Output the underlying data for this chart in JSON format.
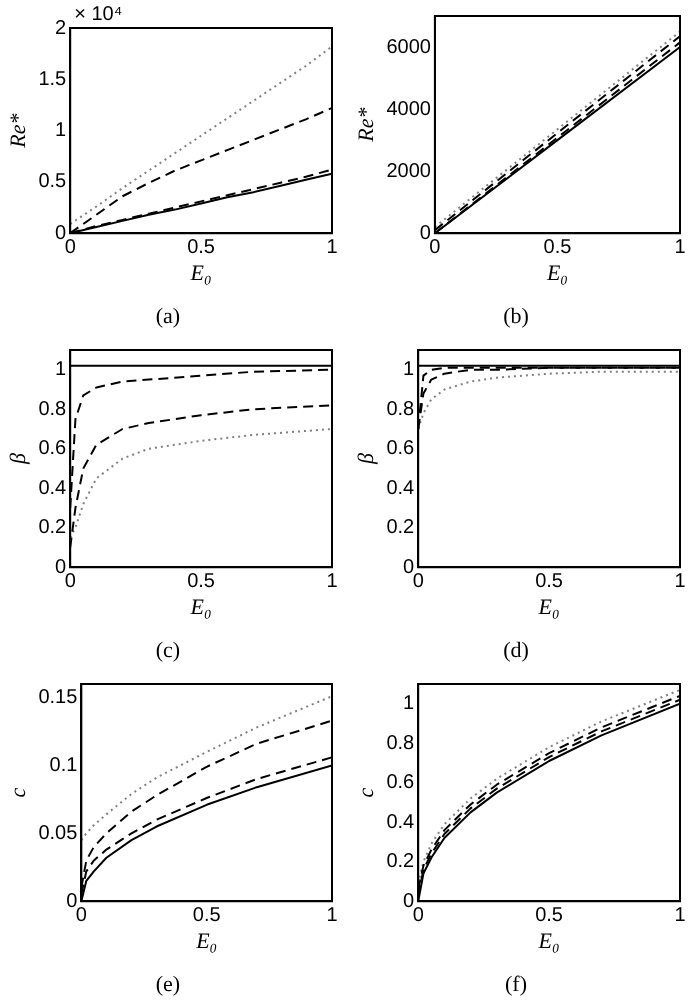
{
  "chart_data": [
    {
      "type": "line",
      "title": "(a)",
      "xlabel": "E₀",
      "ylabel": "Re*",
      "annotations": [
        "× 10⁴"
      ],
      "xlim": [
        0,
        1
      ],
      "xticks": [
        0,
        0.5,
        1
      ],
      "ylim": [
        0,
        2
      ],
      "yticks": [
        0,
        0.5,
        1,
        1.5,
        2
      ],
      "grid": false,
      "legend": false,
      "x": [
        0,
        0.1,
        0.2,
        0.3,
        0.4,
        0.5,
        0.6,
        0.7,
        0.8,
        0.9,
        1
      ],
      "series": [
        {
          "color": "#000000",
          "line_style": "solid",
          "values": [
            0,
            0.06,
            0.12,
            0.18,
            0.23,
            0.29,
            0.35,
            0.4,
            0.46,
            0.52,
            0.58
          ]
        },
        {
          "color": "#000000",
          "line_style": "dashed",
          "values": [
            0,
            0.07,
            0.13,
            0.19,
            0.25,
            0.31,
            0.37,
            0.43,
            0.49,
            0.55,
            0.62
          ]
        },
        {
          "color": "#000000",
          "line_style": "dashed",
          "values": [
            0,
            0.18,
            0.36,
            0.49,
            0.61,
            0.71,
            0.81,
            0.91,
            1.01,
            1.11,
            1.22
          ]
        },
        {
          "color": "#808080",
          "line_style": "dotted",
          "values": [
            0.09,
            0.26,
            0.44,
            0.61,
            0.78,
            0.95,
            1.12,
            1.29,
            1.46,
            1.63,
            1.82
          ]
        }
      ]
    },
    {
      "type": "line",
      "title": "(b)",
      "xlabel": "E₀",
      "ylabel": "Re*",
      "xlim": [
        0,
        1
      ],
      "xticks": [
        0,
        0.5,
        1
      ],
      "ylim": [
        0,
        7000
      ],
      "yticks": [
        0,
        2000,
        4000,
        6000
      ],
      "grid": false,
      "legend": false,
      "x": [
        0,
        0.5,
        1
      ],
      "series": [
        {
          "color": "#000000",
          "line_style": "solid",
          "values": [
            0,
            3000,
            6000
          ]
        },
        {
          "color": "#000000",
          "line_style": "dashed",
          "values": [
            0,
            3080,
            6150
          ]
        },
        {
          "color": "#000000",
          "line_style": "dashed",
          "values": [
            100,
            3230,
            6350
          ]
        },
        {
          "color": "#808080",
          "line_style": "dotted",
          "values": [
            200,
            3350,
            6500
          ]
        }
      ]
    },
    {
      "type": "line",
      "title": "(c)",
      "xlabel": "E₀",
      "ylabel": "β",
      "xlim": [
        0,
        1
      ],
      "xticks": [
        0,
        0.5,
        1
      ],
      "ylim": [
        0,
        1.1
      ],
      "yticks": [
        0,
        0.2,
        0.4,
        0.6,
        0.8,
        1
      ],
      "grid": false,
      "legend": false,
      "x": [
        0,
        0.02,
        0.05,
        0.1,
        0.2,
        0.3,
        0.5,
        0.7,
        1
      ],
      "series": [
        {
          "color": "#000000",
          "line_style": "solid",
          "values": [
            1.02,
            1.02,
            1.02,
            1.02,
            1.02,
            1.02,
            1.02,
            1.02,
            1.02
          ]
        },
        {
          "color": "#000000",
          "line_style": "dashed",
          "values": [
            0.3,
            0.75,
            0.87,
            0.91,
            0.94,
            0.95,
            0.97,
            0.99,
            1.0
          ]
        },
        {
          "color": "#000000",
          "line_style": "dashed",
          "values": [
            0.1,
            0.3,
            0.5,
            0.62,
            0.7,
            0.73,
            0.77,
            0.8,
            0.82
          ]
        },
        {
          "color": "#808080",
          "line_style": "dotted",
          "values": [
            0.15,
            0.2,
            0.32,
            0.45,
            0.55,
            0.6,
            0.64,
            0.67,
            0.7
          ]
        }
      ]
    },
    {
      "type": "line",
      "title": "(d)",
      "xlabel": "E₀",
      "ylabel": "β",
      "xlim": [
        0,
        1
      ],
      "xticks": [
        0,
        0.5,
        1
      ],
      "ylim": [
        0,
        1.1
      ],
      "yticks": [
        0,
        0.2,
        0.4,
        0.6,
        0.8,
        1
      ],
      "grid": false,
      "legend": false,
      "x": [
        0,
        0.02,
        0.05,
        0.1,
        0.2,
        0.3,
        0.5,
        0.7,
        1
      ],
      "series": [
        {
          "color": "#000000",
          "line_style": "solid",
          "values": [
            1.02,
            1.02,
            1.02,
            1.02,
            1.02,
            1.02,
            1.02,
            1.02,
            1.02
          ]
        },
        {
          "color": "#000000",
          "line_style": "dashed",
          "values": [
            0.7,
            0.97,
            1.0,
            1.01,
            1.01,
            1.01,
            1.01,
            1.01,
            1.01
          ]
        },
        {
          "color": "#000000",
          "line_style": "dashed",
          "values": [
            0.7,
            0.88,
            0.95,
            0.98,
            1.0,
            1.0,
            1.01,
            1.01,
            1.01
          ]
        },
        {
          "color": "#808080",
          "line_style": "dotted",
          "values": [
            0.7,
            0.78,
            0.85,
            0.9,
            0.94,
            0.96,
            0.98,
            0.99,
            0.99
          ]
        }
      ]
    },
    {
      "type": "line",
      "title": "(e)",
      "xlabel": "E₀",
      "ylabel": "c",
      "xlim": [
        0,
        1
      ],
      "xticks": [
        0,
        0.5,
        1
      ],
      "ylim": [
        0,
        0.16
      ],
      "yticks": [
        0,
        0.05,
        0.1,
        0.15
      ],
      "grid": false,
      "legend": false,
      "x": [
        0,
        0.02,
        0.05,
        0.1,
        0.2,
        0.3,
        0.5,
        0.7,
        1
      ],
      "series": [
        {
          "color": "#000000",
          "line_style": "solid",
          "values": [
            0,
            0.015,
            0.022,
            0.032,
            0.045,
            0.055,
            0.071,
            0.084,
            0.1
          ]
        },
        {
          "color": "#000000",
          "line_style": "dashed",
          "values": [
            0.005,
            0.022,
            0.03,
            0.038,
            0.05,
            0.06,
            0.076,
            0.09,
            0.106
          ]
        },
        {
          "color": "#000000",
          "line_style": "dashed",
          "values": [
            0.01,
            0.03,
            0.04,
            0.05,
            0.066,
            0.078,
            0.099,
            0.116,
            0.133
          ]
        },
        {
          "color": "#808080",
          "line_style": "dotted",
          "values": [
            0.045,
            0.05,
            0.056,
            0.064,
            0.079,
            0.091,
            0.11,
            0.128,
            0.151
          ]
        }
      ]
    },
    {
      "type": "line",
      "title": "(f)",
      "xlabel": "E₀",
      "ylabel": "c",
      "xlim": [
        0,
        1
      ],
      "xticks": [
        0,
        0.5,
        1
      ],
      "ylim": [
        0,
        1.1
      ],
      "yticks": [
        0,
        0.2,
        0.4,
        0.6,
        0.8,
        1
      ],
      "grid": false,
      "legend": false,
      "x": [
        0,
        0.02,
        0.05,
        0.1,
        0.2,
        0.3,
        0.5,
        0.7,
        1
      ],
      "series": [
        {
          "color": "#000000",
          "line_style": "solid",
          "values": [
            0,
            0.14,
            0.22,
            0.32,
            0.45,
            0.55,
            0.71,
            0.84,
            1.0
          ]
        },
        {
          "color": "#000000",
          "line_style": "dashed",
          "values": [
            0.03,
            0.16,
            0.24,
            0.34,
            0.47,
            0.57,
            0.73,
            0.86,
            1.02
          ]
        },
        {
          "color": "#000000",
          "line_style": "dashed",
          "values": [
            0.06,
            0.18,
            0.26,
            0.36,
            0.49,
            0.59,
            0.75,
            0.88,
            1.04
          ]
        },
        {
          "color": "#808080",
          "line_style": "dotted",
          "values": [
            0.09,
            0.2,
            0.29,
            0.39,
            0.52,
            0.62,
            0.78,
            0.91,
            1.07
          ]
        }
      ]
    }
  ]
}
